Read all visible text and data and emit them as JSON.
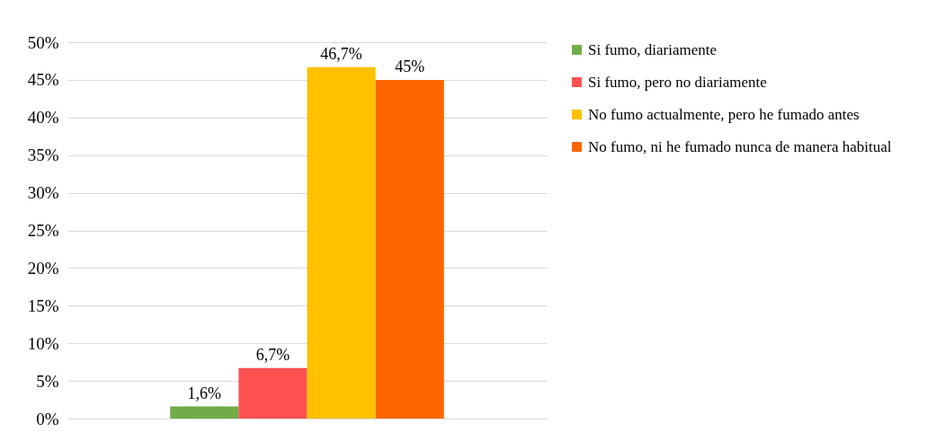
{
  "chart_data": {
    "type": "bar",
    "categories": [
      null
    ],
    "series": [
      {
        "name": "Si fumo, diariamente",
        "color": "#70ad47",
        "values": [
          1.6
        ],
        "value_labels": [
          "1,6%"
        ]
      },
      {
        "name": "Si fumo, pero no diariamente",
        "color": "#ff5050",
        "values": [
          6.7
        ],
        "value_labels": [
          "6,7%"
        ]
      },
      {
        "name": "No fumo actualmente, pero he fumado antes",
        "color": "#ffc000",
        "values": [
          46.7
        ],
        "value_labels": [
          "46,7%"
        ]
      },
      {
        "name": "No fumo, ni he fumado nunca de manera habitual",
        "color": "#ff6600",
        "values": [
          45
        ],
        "value_labels": [
          "45%"
        ]
      }
    ],
    "ylim": [
      0,
      50
    ],
    "yticks": [
      {
        "value": 0,
        "label": "0%"
      },
      {
        "value": 5,
        "label": "5%"
      },
      {
        "value": 10,
        "label": "10%"
      },
      {
        "value": 15,
        "label": "15%"
      },
      {
        "value": 20,
        "label": "20%"
      },
      {
        "value": 25,
        "label": "25%"
      },
      {
        "value": 30,
        "label": "30%"
      },
      {
        "value": 35,
        "label": "35%"
      },
      {
        "value": 40,
        "label": "40%"
      },
      {
        "value": 45,
        "label": "45%"
      },
      {
        "value": 50,
        "label": "50%"
      }
    ],
    "grid": "y",
    "legend": "right"
  }
}
